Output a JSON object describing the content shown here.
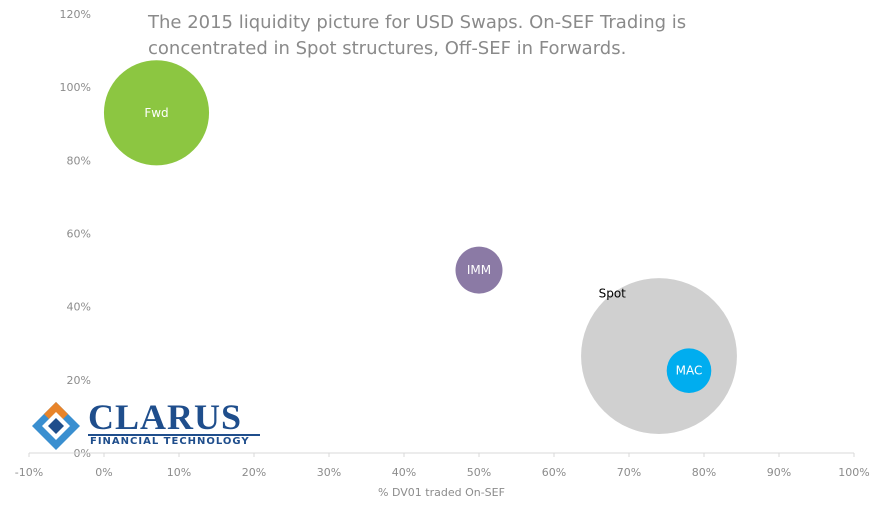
{
  "title": "The 2015 liquidity picture for USD Swaps. On-SEF Trading is concentrated in Spot structures, Off-SEF in Forwards.",
  "logo": {
    "name": "CLARUS",
    "subtitle": "FINANCIAL TECHNOLOGY",
    "colors": {
      "primary": "#1f4e8c",
      "accent_orange": "#e8842a",
      "accent_blue": "#3a8fd0"
    }
  },
  "chart_data": {
    "type": "scatter",
    "variant": "bubble",
    "title": "The 2015 liquidity picture for USD Swaps. On-SEF Trading is concentrated in Spot structures, Off-SEF in Forwards.",
    "xlabel": "% DV01 traded On-SEF",
    "ylabel": "",
    "xlim": [
      -0.1,
      1.0
    ],
    "ylim": [
      0,
      1.2
    ],
    "x_ticks": [
      -0.1,
      0,
      0.1,
      0.2,
      0.3,
      0.4,
      0.5,
      0.6,
      0.7,
      0.8,
      0.9,
      1.0
    ],
    "x_tick_labels": [
      "-10%",
      "0%",
      "10%",
      "20%",
      "30%",
      "40%",
      "50%",
      "60%",
      "70%",
      "80%",
      "90%",
      "100%"
    ],
    "y_ticks": [
      0,
      0.2,
      0.4,
      0.6,
      0.8,
      1.0,
      1.2
    ],
    "y_tick_labels": [
      "0%",
      "20%",
      "40%",
      "60%",
      "80%",
      "100%",
      "120%"
    ],
    "grid": false,
    "legend": "none",
    "series": [
      {
        "name": "Spot",
        "x": 0.74,
        "y": 0.265,
        "size": 11,
        "color": "#d0d0d0",
        "label_color": "#000000",
        "label_position": "top-left"
      },
      {
        "name": "Fwd",
        "x": 0.07,
        "y": 0.93,
        "size": 5.0,
        "color": "#8cc641",
        "label_color": "#ffffff",
        "label_position": "center"
      },
      {
        "name": "IMM",
        "x": 0.5,
        "y": 0.5,
        "size": 1.0,
        "color": "#8b7aa5",
        "label_color": "#ffffff",
        "label_position": "center"
      },
      {
        "name": "MAC",
        "x": 0.78,
        "y": 0.225,
        "size": 0.9,
        "color": "#00adef",
        "label_color": "#ffffff",
        "label_position": "center"
      }
    ]
  }
}
